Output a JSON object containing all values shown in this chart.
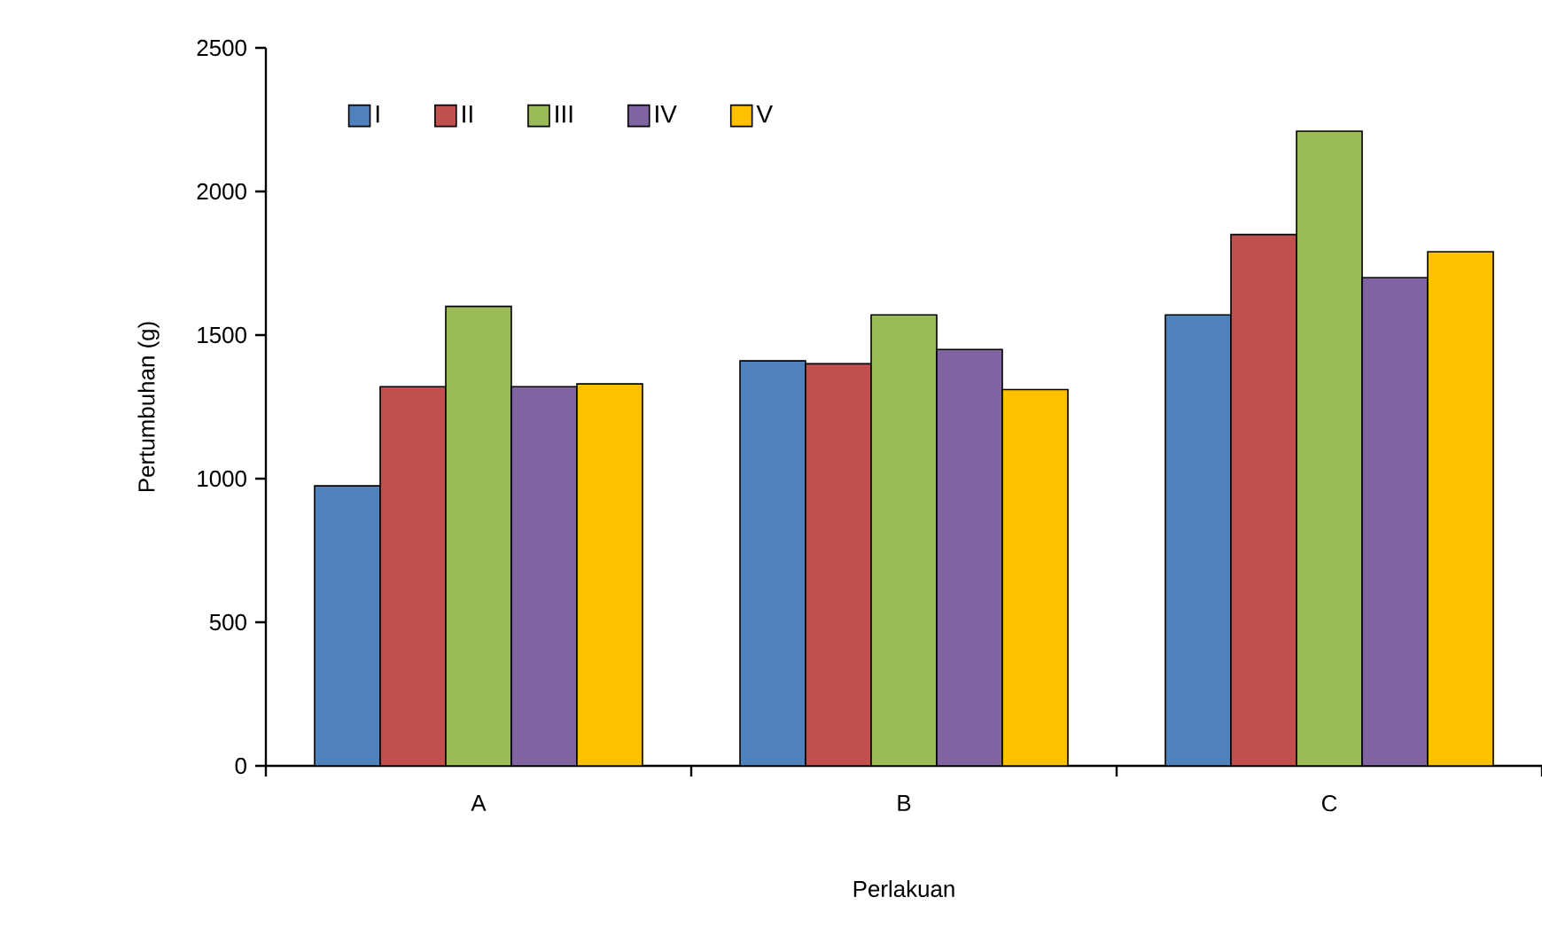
{
  "chart_data": {
    "type": "bar",
    "xlabel": "Perlakuan",
    "ylabel": "Pertumbuhan (g)",
    "categories": [
      "A",
      "B",
      "C"
    ],
    "series": [
      {
        "name": "I",
        "color": "#4f81bd",
        "values": [
          975,
          1410,
          1570
        ]
      },
      {
        "name": "II",
        "color": "#c0504d",
        "values": [
          1320,
          1400,
          1850
        ]
      },
      {
        "name": "III",
        "color": "#9bbb59",
        "values": [
          1600,
          1570,
          2210
        ]
      },
      {
        "name": "IV",
        "color": "#8064a2",
        "values": [
          1320,
          1450,
          1700
        ]
      },
      {
        "name": "V",
        "color": "#ffc000",
        "values": [
          1330,
          1310,
          1790
        ]
      }
    ],
    "ylim": [
      0,
      2500
    ],
    "yticks": [
      0,
      500,
      1000,
      1500,
      2000,
      2500
    ],
    "grid": false,
    "legend": "top left"
  }
}
